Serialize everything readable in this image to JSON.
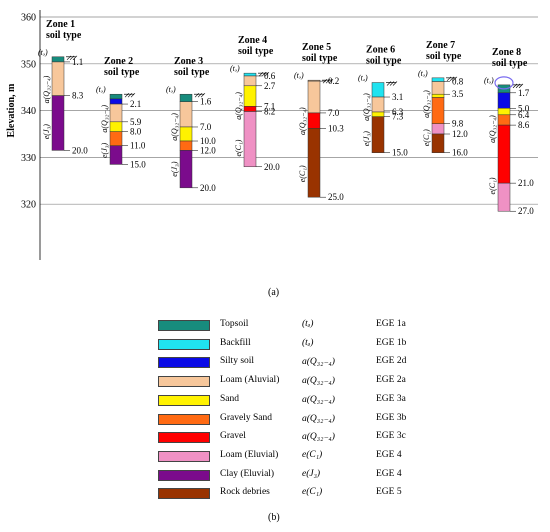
{
  "y_axis": {
    "label": "Elevation, m",
    "ticks": [
      360,
      350,
      340,
      330,
      320
    ]
  },
  "materials": {
    "topsoil": "#178c7d",
    "backfill": "#20e3f0",
    "silty_soil": "#0a0ae6",
    "loam_alluvial": "#f7c79b",
    "sand": "#fff200",
    "gravelly_sand": "#ff6a13",
    "gravel": "#ff0000",
    "loam_eluvial": "#ef91c4",
    "clay_eluvial": "#7b0b8c",
    "rock_debries": "#993300"
  },
  "zones": [
    {
      "title": "Zone 1\nsoil type",
      "top": 351.5,
      "layers": [
        {
          "m": "topsoil",
          "d": 1.1
        },
        {
          "m": "loam_alluvial",
          "d": 8.3
        },
        {
          "m": "clay_eluvial",
          "d": 20.0
        }
      ],
      "depth_labels": [
        "1.1",
        "8.3",
        "20.0"
      ],
      "label_depths": [
        1.1,
        8.3,
        20.0
      ],
      "strata_labels": [
        "(tₔ)",
        "a(Q₃₂₋₄)",
        "e(J₃)"
      ]
    },
    {
      "title": "Zone 2\nsoil type",
      "top": 343.5,
      "layers": [
        {
          "m": "topsoil",
          "d": 1.0
        },
        {
          "m": "silty_soil",
          "d": 2.1
        },
        {
          "m": "loam_alluvial",
          "d": 5.9
        },
        {
          "m": "sand",
          "d": 8.0
        },
        {
          "m": "gravelly_sand",
          "d": 11.0
        },
        {
          "m": "clay_eluvial",
          "d": 15.0
        }
      ],
      "depth_labels": [
        "2.1",
        "5.9",
        "8.0",
        "11.0",
        "15.0"
      ],
      "label_depths": [
        2.1,
        5.9,
        8.0,
        11.0,
        15.0
      ],
      "strata_labels": [
        "(tₔ)",
        "a(Q₃₂₋₄)",
        "e(J₃)"
      ]
    },
    {
      "title": "Zone 3\nsoil type",
      "top": 343.5,
      "layers": [
        {
          "m": "topsoil",
          "d": 1.6
        },
        {
          "m": "loam_alluvial",
          "d": 7.0
        },
        {
          "m": "sand",
          "d": 10.0
        },
        {
          "m": "gravelly_sand",
          "d": 12.0
        },
        {
          "m": "clay_eluvial",
          "d": 20.0
        }
      ],
      "depth_labels": [
        "1.6",
        "7.0",
        "10.0",
        "12.0",
        "20.0"
      ],
      "label_depths": [
        1.6,
        7.0,
        10.0,
        12.0,
        20.0
      ],
      "strata_labels": [
        "(tₔ)",
        "a(Q₃₂₋₄)",
        "e(J₃)"
      ]
    },
    {
      "title": "Zone 4\nsoil type",
      "top": 348.0,
      "layers": [
        {
          "m": "backfill",
          "d": 0.6
        },
        {
          "m": "loam_alluvial",
          "d": 2.7
        },
        {
          "m": "sand",
          "d": 7.1
        },
        {
          "m": "gravel",
          "d": 8.2
        },
        {
          "m": "loam_eluvial",
          "d": 20.0
        }
      ],
      "depth_labels": [
        "0.6",
        "2.7",
        "7.1",
        "8.2",
        "20.0"
      ],
      "label_depths": [
        0.6,
        2.7,
        7.1,
        8.2,
        20.0
      ],
      "strata_labels": [
        "(tₔ)",
        "a(Q₃₂₋₄)",
        "e(C₁)"
      ]
    },
    {
      "title": "Zone 5\nsoil type",
      "top": 346.5,
      "layers": [
        {
          "m": "loam_alluvial",
          "d": 0.2
        },
        {
          "m": "loam_alluvial",
          "d": 7.0
        },
        {
          "m": "gravel",
          "d": 10.3
        },
        {
          "m": "rock_debries",
          "d": 25.0
        }
      ],
      "depth_labels": [
        "0.2",
        "7.0",
        "10.3",
        "25.0"
      ],
      "label_depths": [
        0.2,
        7.0,
        10.3,
        25.0
      ],
      "strata_labels": [
        "(tₔ)",
        "a(Q₃₂₋₄)",
        "e(C₁)"
      ]
    },
    {
      "title": "Zone 6\nsoil type",
      "top": 346.0,
      "layers": [
        {
          "m": "backfill",
          "d": 3.1
        },
        {
          "m": "loam_alluvial",
          "d": 6.3
        },
        {
          "m": "sand",
          "d": 7.3
        },
        {
          "m": "rock_debries",
          "d": 15.0
        }
      ],
      "depth_labels": [
        "3.1",
        "6.3",
        "7.3",
        "15.0"
      ],
      "label_depths": [
        3.1,
        6.3,
        7.3,
        15.0
      ],
      "strata_labels": [
        "(tₔ)",
        "a(Q₃₂₋₄)",
        "e(J₃)"
      ]
    },
    {
      "title": "Zone 7\nsoil type",
      "top": 347.0,
      "layers": [
        {
          "m": "backfill",
          "d": 0.8
        },
        {
          "m": "loam_alluvial",
          "d": 3.5
        },
        {
          "m": "sand",
          "d": 4.2
        },
        {
          "m": "gravelly_sand",
          "d": 9.8
        },
        {
          "m": "loam_eluvial",
          "d": 12.0
        },
        {
          "m": "rock_debries",
          "d": 16.0
        }
      ],
      "depth_labels": [
        "0.8",
        "3.5",
        "9.8",
        "12.0",
        "16.0"
      ],
      "label_depths": [
        0.8,
        3.5,
        9.8,
        12.0,
        16.0
      ],
      "strata_labels": [
        "(tₔ)",
        "a(Q₃₂₋₄)",
        "e(C₁)"
      ]
    },
    {
      "title": "Zone 8\nsoil type",
      "top": 345.5,
      "layers": [
        {
          "m": "topsoil",
          "d": 1.7
        },
        {
          "m": "silty_soil",
          "d": 5.0
        },
        {
          "m": "sand",
          "d": 6.4
        },
        {
          "m": "gravelly_sand",
          "d": 8.6
        },
        {
          "m": "gravel",
          "d": 21.0
        },
        {
          "m": "loam_eluvial",
          "d": 27.0
        }
      ],
      "depth_labels": [
        "1.7",
        "5.0",
        "6.4",
        "8.6",
        "21.0",
        "27.0"
      ],
      "label_depths": [
        1.7,
        5.0,
        6.4,
        8.6,
        21.0,
        27.0
      ],
      "strata_labels": [
        "(tₔ)",
        "a(Q₃₂₋₄)",
        "e(C₁)"
      ]
    }
  ],
  "panel_a_caption": "(a)",
  "panel_b_caption": "(b)",
  "legend": [
    {
      "color": "#178c7d",
      "name": "Topsoil",
      "code": "(tₔ)",
      "ege": "EGE 1a"
    },
    {
      "color": "#20e3f0",
      "name": "Backfill",
      "code": "(tₔ)",
      "ege": "EGE 1b"
    },
    {
      "color": "#0a0ae6",
      "name": "Silty soil",
      "code": "a(Q₃₂₋₄)",
      "ege": "EGE 2d"
    },
    {
      "color": "#f7c79b",
      "name": "Loam (Aluvial)",
      "code": "a(Q₃₂₋₄)",
      "ege": "EGE 2a"
    },
    {
      "color": "#fff200",
      "name": "Sand",
      "code": "a(Q₃₂₋₄)",
      "ege": "EGE 3a"
    },
    {
      "color": "#ff6a13",
      "name": "Gravely Sand",
      "code": "a(Q₃₂₋₄)",
      "ege": "EGE 3b"
    },
    {
      "color": "#ff0000",
      "name": "Gravel",
      "code": "a(Q₃₂₋₄)",
      "ege": "EGE 3c"
    },
    {
      "color": "#ef91c4",
      "name": "Loam (Eluvial)",
      "code": "e(C₁)",
      "ege": "EGE 4"
    },
    {
      "color": "#7b0b8c",
      "name": "Clay (Eluvial)",
      "code": "e(J₃)",
      "ege": "EGE 4"
    },
    {
      "color": "#993300",
      "name": "Rock debries",
      "code": "e(C₁)",
      "ege": "EGE 5"
    }
  ]
}
